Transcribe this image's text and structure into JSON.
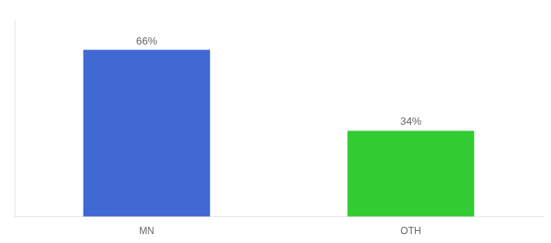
{
  "chart_data": {
    "type": "bar",
    "categories": [
      "MN",
      "OTH"
    ],
    "values": [
      66,
      34
    ],
    "value_labels": [
      "66%",
      "34%"
    ],
    "colors": [
      "#4169d4",
      "#33cc33"
    ],
    "ylim": [
      0,
      78
    ],
    "yticks": [],
    "grid": false,
    "data_labels": true,
    "tick_labels": "x"
  }
}
